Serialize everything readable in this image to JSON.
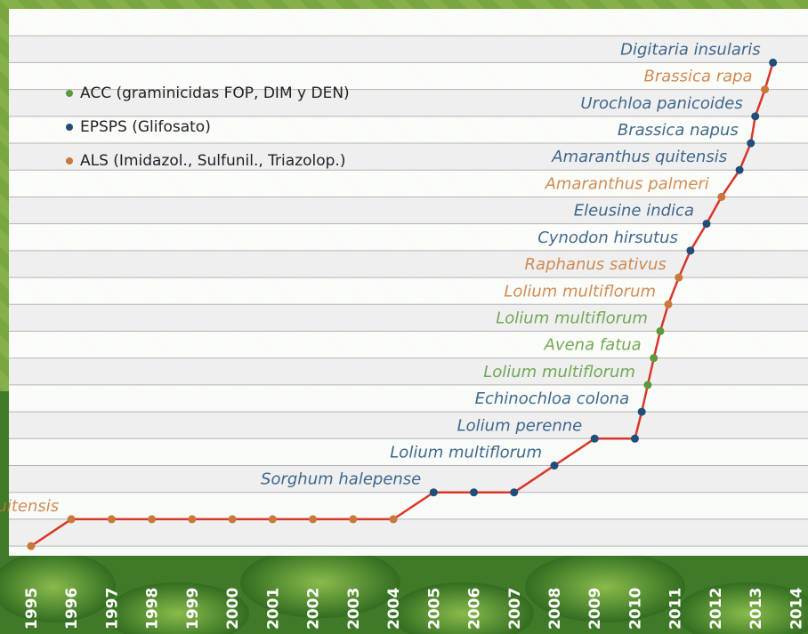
{
  "chart_data": {
    "type": "line",
    "legend": [
      {
        "name": "ACC (graminicidas FOP, DIM y DEN)",
        "color": "#5a9a3c"
      },
      {
        "name": "EPSPS (Glifosato)",
        "color": "#1f4e79"
      },
      {
        "name": "ALS (Imidazol., Sulfunil., Triazolop.)",
        "color": "#c8783a"
      }
    ],
    "line_color": "#d9362b",
    "x": [
      1995,
      1996,
      1997,
      1998,
      1999,
      2000,
      2001,
      2002,
      2003,
      2004,
      2005,
      2006,
      2007,
      2008,
      2009,
      2010,
      2010.17,
      2010.32,
      2010.47,
      2010.63,
      2010.83,
      2011.09,
      2011.38,
      2011.78,
      2012.15,
      2012.6,
      2012.88,
      2012.99,
      2013.23,
      2013.43
    ],
    "values": [
      0,
      1,
      1,
      1,
      1,
      1,
      1,
      1,
      1,
      1,
      2,
      2,
      2,
      3,
      4,
      4,
      5,
      6,
      7,
      8,
      9,
      10,
      11,
      12,
      13,
      14,
      15,
      16,
      17,
      18
    ],
    "point_colors": [
      "#c8783a",
      "#c8783a",
      "#c8783a",
      "#c8783a",
      "#c8783a",
      "#c8783a",
      "#c8783a",
      "#c8783a",
      "#c8783a",
      "#c8783a",
      "#1f4e79",
      "#1f4e79",
      "#1f4e79",
      "#1f4e79",
      "#1f4e79",
      "#1f4e79",
      "#1f4e79",
      "#5a9a3c",
      "#5a9a3c",
      "#5a9a3c",
      "#c8783a",
      "#c8783a",
      "#1f4e79",
      "#1f4e79",
      "#c8783a",
      "#1f4e79",
      "#1f4e79",
      "#1f4e79",
      "#c8783a",
      "#1f4e79"
    ],
    "labels": [
      null,
      "Amaranthus quitensis",
      null,
      null,
      null,
      null,
      null,
      null,
      null,
      null,
      "Sorghum halepense",
      null,
      null,
      "Lolium multiflorum",
      "Lolium perenne",
      null,
      "Echinochloa colona",
      "Lolium multiflorum",
      "Avena fatua",
      "Lolium multiflorum",
      "Lolium multiflorum",
      "Raphanus sativus",
      "Cynodon hirsutus",
      "Eleusine indica",
      "Amaranthus palmeri",
      "Amaranthus quitensis",
      "Brassica napus",
      "Urochloa panicoides",
      "Brassica rapa",
      "Digitaria insularis"
    ],
    "xlim": [
      1994.45,
      2014.3
    ],
    "xticks": [
      1995,
      1996,
      1997,
      1998,
      1999,
      2000,
      2001,
      2002,
      2003,
      2004,
      2005,
      2006,
      2007,
      2008,
      2009,
      2010,
      2011,
      2012,
      2013,
      2014
    ],
    "ylim": [
      -0.36,
      20
    ],
    "yticks": [
      0,
      1,
      2,
      3,
      4,
      5,
      6,
      7,
      8,
      9,
      10,
      11,
      12,
      13,
      14,
      15,
      16,
      17,
      18,
      19
    ],
    "grid": true
  }
}
